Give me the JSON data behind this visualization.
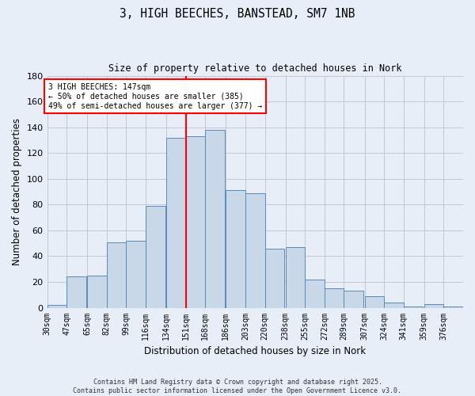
{
  "title_line1": "3, HIGH BEECHES, BANSTEAD, SM7 1NB",
  "title_line2": "Size of property relative to detached houses in Nork",
  "xlabel": "Distribution of detached houses by size in Nork",
  "ylabel": "Number of detached properties",
  "bar_labels": [
    "30sqm",
    "47sqm",
    "65sqm",
    "82sqm",
    "99sqm",
    "116sqm",
    "134sqm",
    "151sqm",
    "168sqm",
    "186sqm",
    "203sqm",
    "220sqm",
    "238sqm",
    "255sqm",
    "272sqm",
    "289sqm",
    "307sqm",
    "324sqm",
    "341sqm",
    "359sqm",
    "376sqm"
  ],
  "bin_values": [
    2,
    24,
    25,
    51,
    52,
    79,
    132,
    133,
    138,
    91,
    89,
    46,
    47,
    22,
    15,
    13,
    9,
    4,
    1,
    3,
    1
  ],
  "bin_lefts": [
    30,
    47,
    65,
    82,
    99,
    116,
    134,
    151,
    168,
    186,
    203,
    220,
    238,
    255,
    272,
    289,
    307,
    324,
    341,
    359,
    376
  ],
  "bin_width": 17,
  "bar_color": "#c8d8e8",
  "bar_edge_color": "#5b8ab5",
  "vline_x": 151,
  "vline_color": "red",
  "annotation_text": "3 HIGH BEECHES: 147sqm\n← 50% of detached houses are smaller (385)\n49% of semi-detached houses are larger (377) →",
  "annotation_box_color": "white",
  "annotation_box_edge": "red",
  "ylim": [
    0,
    180
  ],
  "yticks": [
    0,
    20,
    40,
    60,
    80,
    100,
    120,
    140,
    160,
    180
  ],
  "grid_color": "#c0c8d8",
  "bg_color": "#e8eef8",
  "footer_line1": "Contains HM Land Registry data © Crown copyright and database right 2025.",
  "footer_line2": "Contains public sector information licensed under the Open Government Licence v3.0."
}
